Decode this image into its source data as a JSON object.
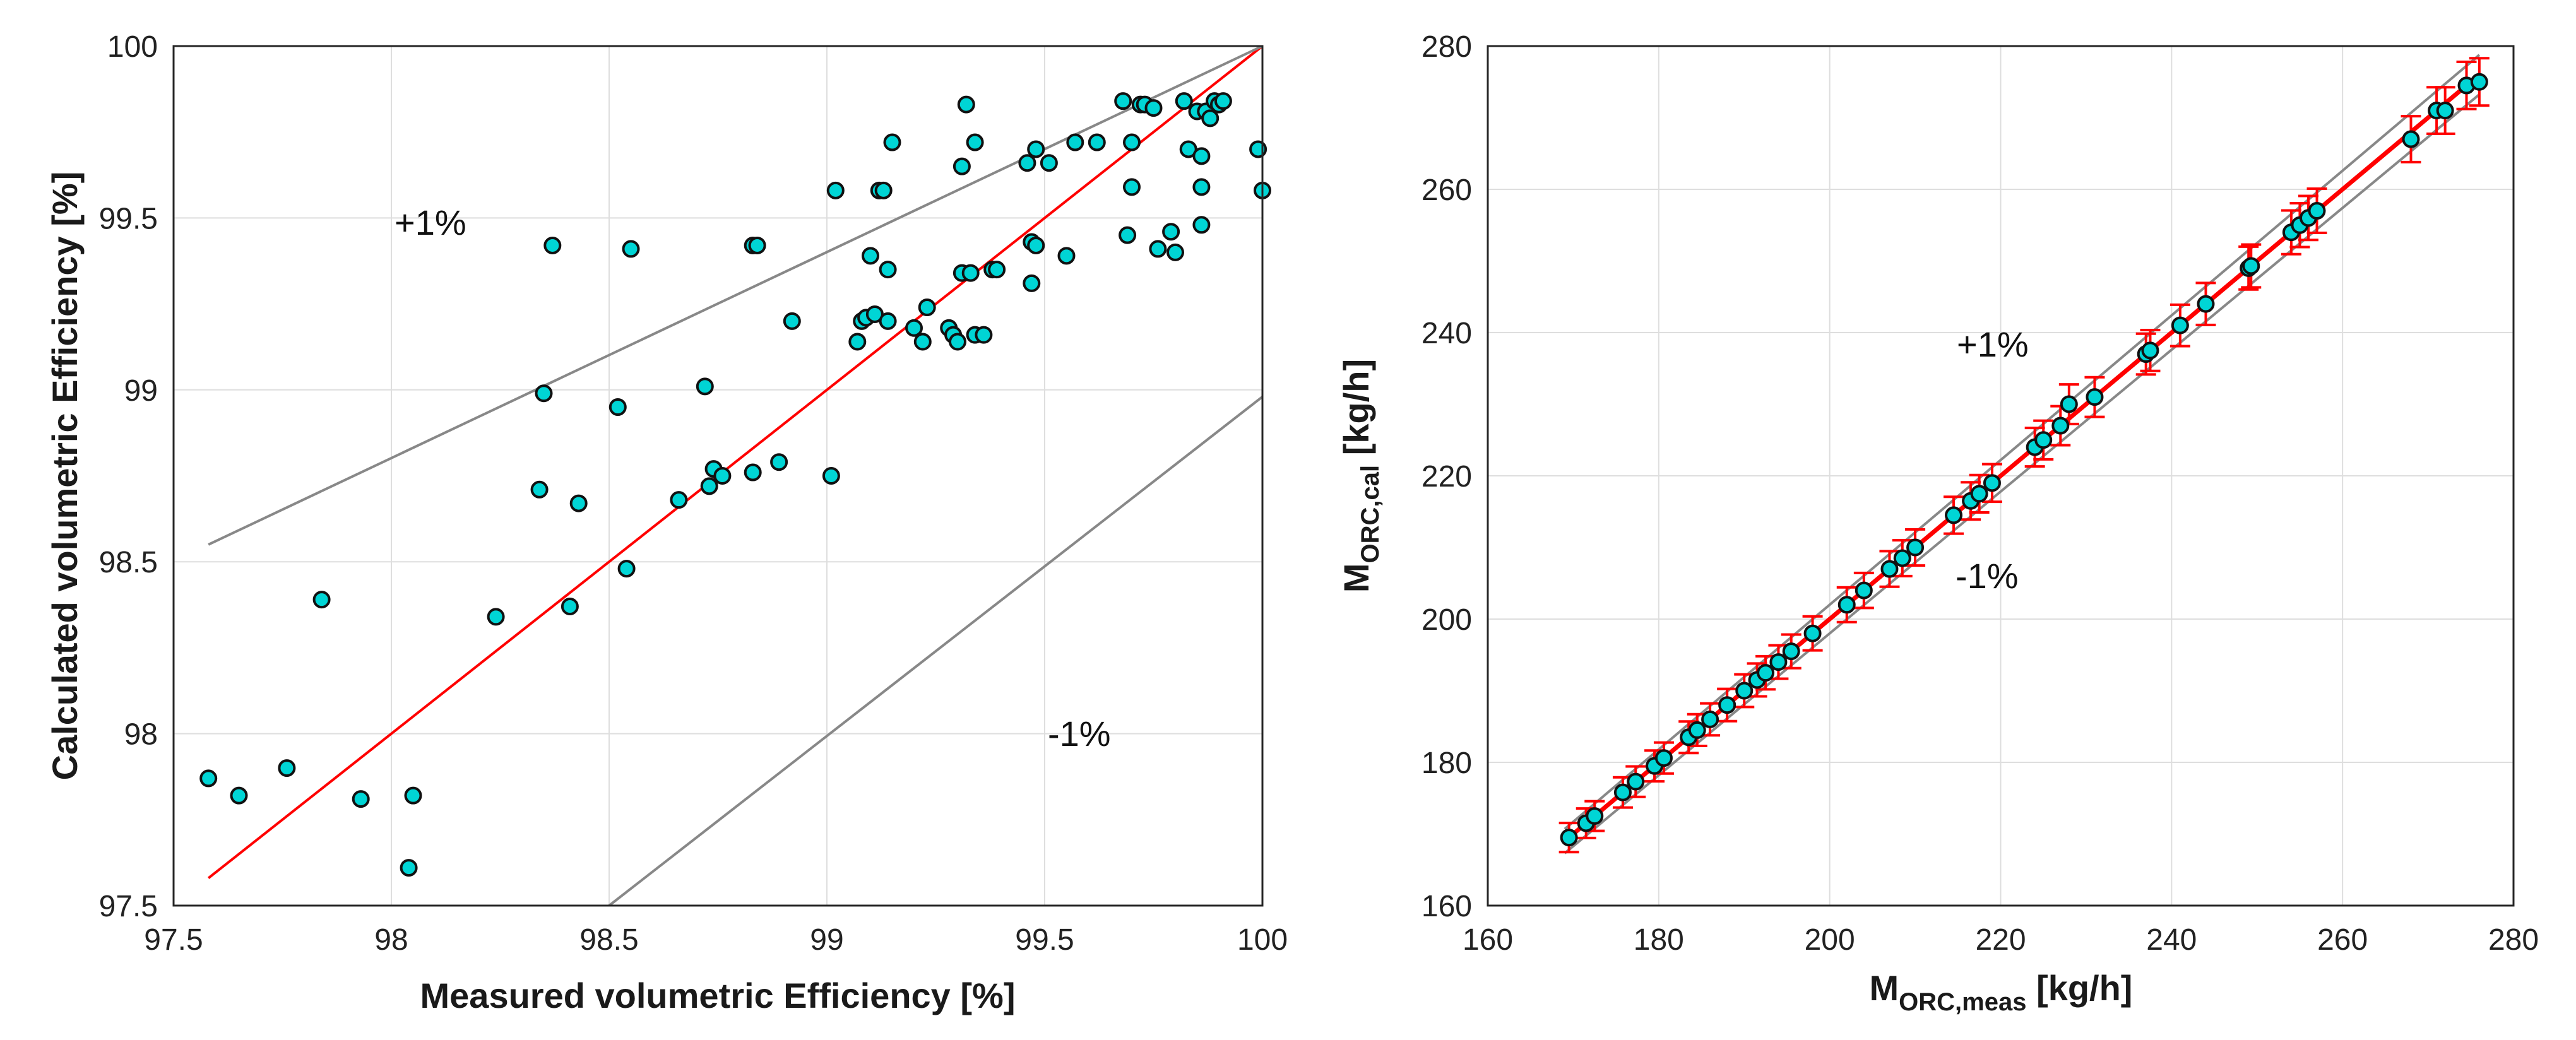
{
  "chart_data": [
    {
      "type": "scatter",
      "xlabel": "Measured volumetric Efficiency [%]",
      "ylabel": "Calculated volumetric Efficiency [%]",
      "xlim": [
        97.5,
        100
      ],
      "ylim": [
        97.5,
        100
      ],
      "xticks": [
        "97.5",
        "98",
        "98.5",
        "99",
        "99.5",
        "100"
      ],
      "yticks": [
        "97.5",
        "98",
        "98.5",
        "99",
        "99.5",
        "100"
      ],
      "grid": true,
      "annotations": [
        "+1%",
        "-1%"
      ],
      "lines": [
        {
          "name": "ideal",
          "color": "#ff0000",
          "points": [
            [
              97.58,
              97.58
            ],
            [
              100,
              100
            ]
          ]
        },
        {
          "name": "+1%",
          "color": "#888888",
          "points": [
            [
              97.58,
              98.55
            ],
            [
              100.0,
              100.0
            ]
          ]
        },
        {
          "name": "-1%",
          "color": "#888888",
          "points": [
            [
              98.5,
              97.5
            ],
            [
              100.0,
              98.98
            ]
          ]
        }
      ],
      "marker_color": "#00d5d5",
      "series": [
        {
          "name": "data",
          "x": [
            97.58,
            97.65,
            97.76,
            97.84,
            97.93,
            98.04,
            98.05,
            98.24,
            98.34,
            98.35,
            98.37,
            98.41,
            98.43,
            98.52,
            98.54,
            98.55,
            98.66,
            98.72,
            98.73,
            98.74,
            98.76,
            98.83,
            98.83,
            98.84,
            98.89,
            98.92,
            99.01,
            99.02,
            99.07,
            99.08,
            99.09,
            99.1,
            99.11,
            99.12,
            99.13,
            99.14,
            99.14,
            99.15,
            99.2,
            99.22,
            99.23,
            99.28,
            99.29,
            99.3,
            99.31,
            99.31,
            99.32,
            99.33,
            99.34,
            99.34,
            99.36,
            99.38,
            99.39,
            99.46,
            99.47,
            99.47,
            99.48,
            99.48,
            99.51,
            99.55,
            99.57,
            99.62,
            99.68,
            99.69,
            99.7,
            99.7,
            99.72,
            99.73,
            99.75,
            99.76,
            99.79,
            99.8,
            99.82,
            99.83,
            99.85,
            99.86,
            99.86,
            99.86,
            99.87,
            99.88,
            99.89,
            99.9,
            99.91,
            99.99,
            100.0
          ],
          "y": [
            97.87,
            97.82,
            97.9,
            98.39,
            97.81,
            97.61,
            97.82,
            98.34,
            98.71,
            98.99,
            99.42,
            98.37,
            98.67,
            98.95,
            98.48,
            99.41,
            98.68,
            99.01,
            98.72,
            98.77,
            98.75,
            98.76,
            99.42,
            99.42,
            98.79,
            99.2,
            98.75,
            99.58,
            99.14,
            99.2,
            99.21,
            99.39,
            99.22,
            99.58,
            99.58,
            99.35,
            99.2,
            99.72,
            99.18,
            99.14,
            99.24,
            99.18,
            99.16,
            99.14,
            99.34,
            99.65,
            99.83,
            99.34,
            99.16,
            99.72,
            99.16,
            99.35,
            99.35,
            99.66,
            99.31,
            99.43,
            99.7,
            99.42,
            99.66,
            99.39,
            99.72,
            99.72,
            99.84,
            99.45,
            99.59,
            99.72,
            99.83,
            99.83,
            99.82,
            99.41,
            99.46,
            99.4,
            99.84,
            99.7,
            99.81,
            99.48,
            99.59,
            99.68,
            99.81,
            99.79,
            99.84,
            99.83,
            99.84,
            99.7,
            99.58
          ]
        }
      ]
    },
    {
      "type": "scatter",
      "xlabel": "M",
      "xlabel_sub": "ORC,meas",
      "xlabel_unit": " [kg/h]",
      "ylabel": "M",
      "ylabel_sub": "ORC,cal",
      "ylabel_unit": " [kg/h]",
      "xlim": [
        160,
        280
      ],
      "ylim": [
        160,
        280
      ],
      "xticks": [
        "160",
        "180",
        "200",
        "220",
        "240",
        "260",
        "280"
      ],
      "yticks": [
        "160",
        "180",
        "200",
        "220",
        "240",
        "260",
        "280"
      ],
      "grid": true,
      "annotations": [
        "+1%",
        "-1%"
      ],
      "lines": [
        {
          "name": "ideal",
          "color": "#ff0000",
          "points": [
            [
              169,
              169
            ],
            [
              276,
              276
            ]
          ]
        },
        {
          "name": "+1%",
          "color": "#888888",
          "points": [
            [
              169,
              170.69
            ],
            [
              276,
              278.76
            ]
          ]
        },
        {
          "name": "-1%",
          "color": "#888888",
          "points": [
            [
              169,
              167.31
            ],
            [
              276,
              273.24
            ]
          ]
        }
      ],
      "marker_color": "#00d5d5",
      "error_color": "#ff0000",
      "error_pct": 1.2,
      "series": [
        {
          "name": "data",
          "x": [
            169.5,
            171.5,
            172.5,
            175.8,
            177.3,
            179.5,
            180.6,
            183.5,
            184.5,
            186.0,
            188.0,
            190.0,
            191.5,
            192.5,
            194.0,
            195.5,
            198.0,
            202.0,
            204.0,
            207.0,
            208.5,
            210.0,
            214.5,
            216.5,
            217.5,
            219.0,
            224.0,
            225.0,
            227.0,
            228.0,
            231.0,
            237.0,
            237.5,
            241.0,
            244.0,
            249.0,
            249.3,
            254.0,
            255.0,
            256.0,
            257.0,
            268.0,
            271.0,
            272.0,
            274.5,
            276.0
          ],
          "y": [
            169.5,
            171.5,
            172.5,
            175.8,
            177.3,
            179.5,
            180.6,
            183.5,
            184.5,
            186.0,
            188.0,
            190.0,
            191.5,
            192.5,
            194.0,
            195.5,
            198.0,
            202.0,
            204.0,
            207.0,
            208.5,
            210.0,
            214.5,
            216.5,
            217.5,
            219.0,
            224.0,
            225.0,
            227.0,
            230.0,
            231.0,
            237.0,
            237.5,
            241.0,
            244.0,
            249.0,
            249.3,
            254.0,
            255.0,
            256.0,
            257.0,
            267.0,
            271.0,
            271.0,
            274.5,
            275.0
          ]
        }
      ]
    }
  ]
}
